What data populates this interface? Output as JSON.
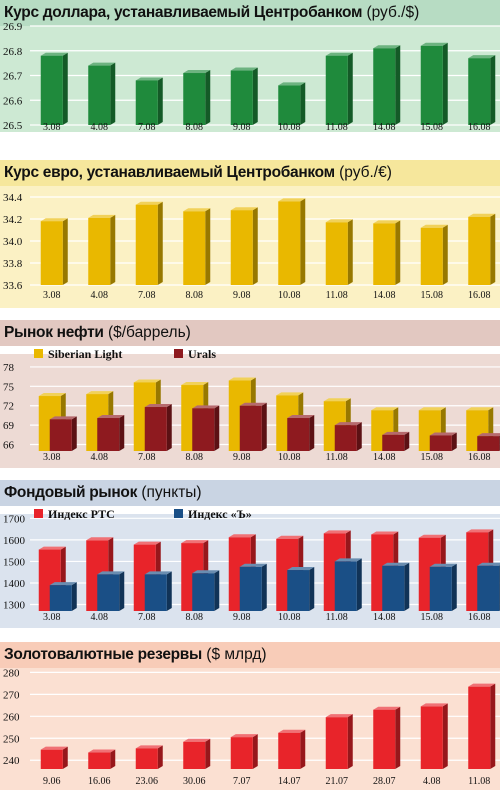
{
  "chart_data": [
    {
      "type": "bar",
      "title": "Курс доллара, устанавливаемый Центробанком",
      "unit": "(руб./$)",
      "categories": [
        "3.08",
        "4.08",
        "7.08",
        "8.08",
        "9.08",
        "10.08",
        "11.08",
        "14.08",
        "15.08",
        "16.08"
      ],
      "series": [
        {
          "values": [
            26.78,
            26.74,
            26.68,
            26.71,
            26.72,
            26.66,
            26.78,
            26.81,
            26.82,
            26.77
          ],
          "color": "#1f8a3c"
        }
      ],
      "ylim": [
        26.5,
        26.9
      ],
      "yticks": [
        26.5,
        26.6,
        26.7,
        26.8,
        26.9
      ],
      "ytick_labels": [
        "26.5",
        "26.6",
        "26.7",
        "26.8",
        "26.9"
      ],
      "colors": {
        "head": "#b7dcc3",
        "plot": "#cde9d3",
        "grid": "#ffffff"
      }
    },
    {
      "type": "bar",
      "title": "Курс евро, устанавливаемый Центробанком",
      "unit": "(руб./€)",
      "categories": [
        "3.08",
        "4.08",
        "7.08",
        "8.08",
        "9.08",
        "10.08",
        "11.08",
        "14.08",
        "15.08",
        "16.08"
      ],
      "series": [
        {
          "values": [
            34.18,
            34.21,
            34.33,
            34.27,
            34.28,
            34.36,
            34.17,
            34.16,
            34.12,
            34.22
          ],
          "color": "#e9b800"
        }
      ],
      "ylim": [
        33.6,
        34.5
      ],
      "yticks": [
        33.6,
        33.8,
        34.0,
        34.2,
        34.4
      ],
      "ytick_labels": [
        "33.6",
        "33.8",
        "34.0",
        "34.2",
        "34.4"
      ],
      "colors": {
        "head": "#f6e79c",
        "plot": "#fbf1c4",
        "grid": "#ffffff"
      }
    },
    {
      "type": "bar",
      "title": "Рынок нефти",
      "unit": "($/баррель)",
      "categories": [
        "3.08",
        "4.08",
        "7.08",
        "8.08",
        "9.08",
        "10.08",
        "11.08",
        "14.08",
        "15.08",
        "16.08"
      ],
      "series": [
        {
          "name": "Siberian Light",
          "values": [
            73.5,
            73.8,
            75.6,
            75.2,
            75.9,
            73.6,
            72.7,
            71.3,
            71.3,
            71.3
          ],
          "color": "#e9b800"
        },
        {
          "name": "Urals",
          "values": [
            69.9,
            70.1,
            71.8,
            71.6,
            72.0,
            70.1,
            69.0,
            67.5,
            67.4,
            67.3
          ],
          "color": "#8e1a1f"
        }
      ],
      "ylim": [
        65,
        80
      ],
      "yticks": [
        66,
        69,
        72,
        75,
        78
      ],
      "ytick_labels": [
        "66",
        "69",
        "72",
        "75",
        "78"
      ],
      "colors": {
        "head": "#e2c8c1",
        "plot": "#eddad4",
        "grid": "#ffffff"
      }
    },
    {
      "type": "bar",
      "title": "Фондовый рынок",
      "unit": "(пункты)",
      "categories": [
        "3.08",
        "4.08",
        "7.08",
        "8.08",
        "9.08",
        "10.08",
        "11.08",
        "14.08",
        "15.08",
        "16.08"
      ],
      "series": [
        {
          "name": "Индекс РТС",
          "values": [
            1555,
            1598,
            1578,
            1585,
            1612,
            1605,
            1630,
            1625,
            1610,
            1635
          ],
          "color": "#e8242a"
        },
        {
          "name": "Индекс «Ъ»",
          "values": [
            1390,
            1440,
            1440,
            1445,
            1475,
            1460,
            1500,
            1480,
            1475,
            1480
          ],
          "color": "#1a4f86"
        }
      ],
      "ylim": [
        1270,
        1720
      ],
      "yticks": [
        1300,
        1400,
        1500,
        1600,
        1700
      ],
      "ytick_labels": [
        "1300",
        "1400",
        "1500",
        "1600",
        "1700"
      ],
      "colors": {
        "head": "#c9d4e3",
        "plot": "#dbe3ee",
        "grid": "#ffffff"
      }
    },
    {
      "type": "bar",
      "title": "Золотовалютные резервы",
      "unit": "($ млрд)",
      "categories": [
        "9.06",
        "16.06",
        "23.06",
        "30.06",
        "7.07",
        "14.07",
        "21.07",
        "28.07",
        "4.08",
        "11.08"
      ],
      "series": [
        {
          "values": [
            244.8,
            243.5,
            245.4,
            248.4,
            250.5,
            252.5,
            259.6,
            263.0,
            264.5,
            273.5
          ],
          "color": "#e8242a"
        }
      ],
      "ylim": [
        236,
        282
      ],
      "yticks": [
        240,
        250,
        260,
        270,
        280
      ],
      "ytick_labels": [
        "240",
        "250",
        "260",
        "270",
        "280"
      ],
      "colors": {
        "head": "#f8ccb8",
        "plot": "#fbe0d2",
        "grid": "#ffffff"
      }
    }
  ]
}
